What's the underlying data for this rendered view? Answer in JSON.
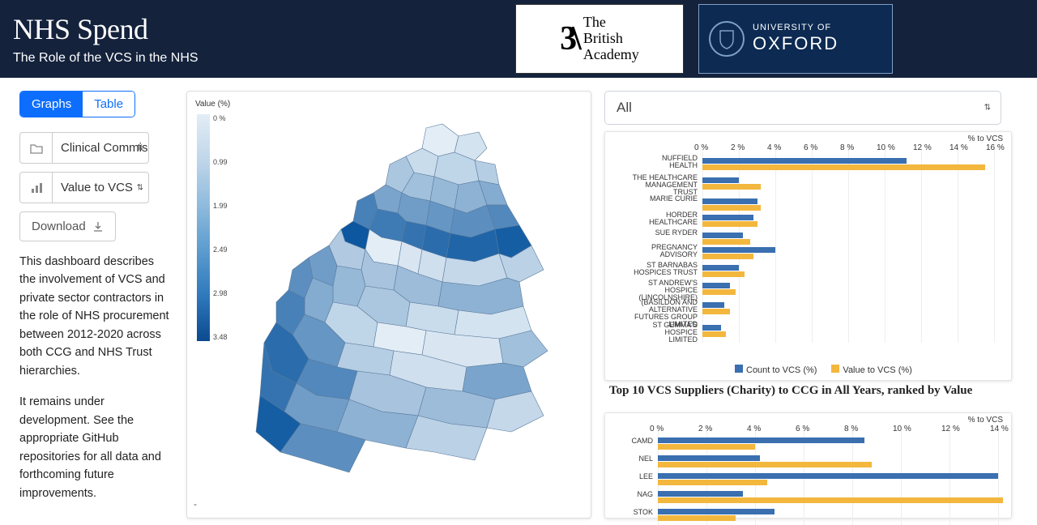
{
  "header": {
    "title": "NHS Spend",
    "subtitle": "The Role of the VCS in the NHS",
    "ba_mark": "3\\",
    "ba_line1": "The",
    "ba_line2": "British",
    "ba_line3": "Academy",
    "ox_line1": "UNIVERSITY OF",
    "ox_line2": "OXFORD"
  },
  "sidebar": {
    "tabs": {
      "graphs": "Graphs",
      "table": "Table"
    },
    "select1": "Clinical Commissioning Group",
    "select2": "Value to VCS",
    "download": "Download",
    "desc1": "This dashboard describes the involvement of VCS and private sector contractors in the role of NHS procurement between 2012-2020 across both CCG and NHS Trust hierarchies.",
    "desc2": "It remains under development. See the appropriate GitHub repositories for all data and forthcoming future improvements."
  },
  "map": {
    "legend_title": "Value (%)",
    "ticks": [
      "0 %",
      "0.99",
      "1.99",
      "2.49",
      "2.98",
      "3.48"
    ],
    "dash": "-",
    "region_fills": [
      "#e3edf6",
      "#d4e3f0",
      "#c9dcec",
      "#bfd5e8",
      "#b5cee4",
      "#abc7e0",
      "#a1c0dc",
      "#97b9d8",
      "#8eb2d4",
      "#84abd0",
      "#7aa4cc",
      "#709dc8",
      "#6696c4",
      "#5c8fc0",
      "#5288bc",
      "#4881b8",
      "#3e7ab4",
      "#3473b0",
      "#2a6cac",
      "#2065a8",
      "#165ea4",
      "#0c57a0",
      "#e3edf6",
      "#d9e6f2",
      "#cfdfee",
      "#c5d8ea",
      "#bbd1e6",
      "#b1cae2",
      "#a7c3de",
      "#9dbcda"
    ],
    "region_paths": [
      "M210 25 L230 20 L250 35 L245 55 L225 60 L205 50 Z",
      "M250 35 L275 30 L285 50 L270 65 L245 55 Z",
      "M205 50 L225 60 L220 85 L195 80 L185 60 Z",
      "M245 55 L270 65 L275 90 L250 95 L220 85 L225 60 Z",
      "M270 65 L295 70 L300 95 L275 90 Z",
      "M185 60 L195 80 L180 105 L160 95 L165 70 Z",
      "M195 80 L220 85 L215 115 L190 110 L180 105 Z",
      "M220 85 L250 95 L245 125 L215 115 Z",
      "M250 95 L275 90 L285 120 L260 130 L245 125 Z",
      "M275 90 L300 95 L310 120 L285 120 Z",
      "M160 95 L180 105 L175 130 L150 125 L145 105 Z",
      "M180 105 L190 110 L215 115 L210 145 L185 140 L175 130 Z",
      "M215 115 L245 125 L240 155 L210 145 Z",
      "M245 125 L260 130 L285 120 L295 150 L265 160 L240 155 Z",
      "M285 120 L310 120 L325 145 L295 150 Z",
      "M145 105 L150 125 L140 150 L120 140 L125 115 Z",
      "M150 125 L175 130 L185 140 L180 165 L155 160 L140 150 Z",
      "M185 140 L210 145 L205 175 L180 165 Z",
      "M210 145 L240 155 L235 185 L205 175 Z",
      "M240 155 L265 160 L295 150 L300 180 L270 190 L235 185 Z",
      "M295 150 L325 145 L340 170 L315 185 L300 180 Z",
      "M120 140 L140 150 L135 175 L110 165 L105 150 Z",
      "M140 150 L155 160 L180 165 L175 195 L145 190 L135 175 Z",
      "M180 165 L205 175 L200 205 L175 195 Z",
      "M205 175 L235 185 L230 215 L200 205 Z",
      "M235 185 L270 190 L300 180 L310 210 L275 220 L230 215 Z",
      "M300 180 L315 185 L340 170 L355 200 L325 215 L310 210 Z",
      "M105 150 L110 165 L135 175 L130 200 L100 195 L90 170 Z",
      "M135 175 L145 190 L175 195 L170 225 L135 220 L130 200 Z",
      "M175 195 L200 205 L230 215 L225 245 L190 240 L170 225 Z"
    ],
    "region_paths2": [
      "M230 215 L275 220 L310 210 L325 215 L330 245 L290 255 L250 250 L225 245 Z",
      "M90 170 L100 195 L95 220 L70 210 L65 185 Z",
      "M100 195 L130 200 L135 220 L125 245 L95 240 L95 220 Z",
      "M135 220 L170 225 L190 240 L185 270 L150 265 L125 245 Z",
      "M190 240 L225 245 L250 250 L245 280 L210 275 L185 270 Z",
      "M250 250 L290 255 L330 245 L340 275 L300 285 L245 280 Z",
      "M65 185 L70 210 L60 235 L40 225 L45 200 Z",
      "M70 210 L95 220 L95 240 L85 265 L60 255 L60 235 Z",
      "M95 240 L125 245 L150 265 L145 295 L110 290 L85 265 Z",
      "M150 265 L185 270 L210 275 L205 305 L170 300 L145 295 Z",
      "M210 275 L245 280 L300 285 L305 315 L260 320 L205 305 Z",
      "M300 285 L340 275 L360 300 L330 320 L305 315 Z",
      "M40 225 L60 235 L60 255 L45 280 L25 265 L25 240 Z",
      "M60 255 L85 265 L110 290 L100 320 L65 310 L45 280 Z",
      "M110 290 L145 295 L170 300 L165 330 L125 325 L100 320 Z",
      "M170 300 L205 305 L260 320 L255 350 L210 345 L165 330 Z",
      "M260 320 L305 315 L330 320 L340 350 L295 360 L255 350 Z",
      "M25 265 L45 280 L65 310 L50 340 L20 325 L10 290 Z",
      "M65 310 L100 320 L125 325 L115 360 L75 355 L50 340 Z",
      "M125 325 L165 330 L210 345 L200 380 L155 375 L115 360 Z",
      "M210 345 L255 350 L295 360 L285 395 L240 390 L200 380 Z",
      "M295 360 L340 350 L355 380 L315 400 L285 395 Z",
      "M10 290 L20 325 L50 340 L35 375 L5 355 Z",
      "M50 340 L75 355 L115 360 L100 400 L55 390 L35 375 Z",
      "M115 360 L155 375 L200 380 L185 420 L135 410 L100 400 Z",
      "M200 380 L240 390 L285 395 L270 435 L220 425 L185 420 Z",
      "M5 355 L35 375 L55 390 L30 425 L0 400 Z",
      "M55 390 L100 400 L135 410 L115 450 L65 435 L30 425 Z"
    ],
    "region_fills2": [
      "#8eb2d4",
      "#709dc8",
      "#97b9d8",
      "#abc7e0",
      "#c9dcec",
      "#d4e3f0",
      "#5c8fc0",
      "#84abd0",
      "#bfd5e8",
      "#e3edf6",
      "#d9e6f2",
      "#a1c0dc",
      "#4881b8",
      "#6696c4",
      "#b5cee4",
      "#cfdfee",
      "#7aa4cc",
      "#2a6cac",
      "#5288bc",
      "#a7c3de",
      "#9dbcda",
      "#c5d8ea",
      "#3473b0",
      "#709dc8",
      "#8eb2d4",
      "#bbd1e6",
      "#165ea4",
      "#5c8fc0"
    ]
  },
  "right": {
    "year_select": "All",
    "chart1": {
      "top_label": "% to VCS",
      "axis_ticks": [
        "0 %",
        "2 %",
        "4 %",
        "6 %",
        "8 %",
        "10 %",
        "12 %",
        "14 %",
        "16 %"
      ],
      "axis_x": [
        120,
        165,
        210,
        255,
        300,
        345,
        390,
        435,
        480
      ],
      "categories": [
        "NUFFIELD\nHEALTH",
        "THE HEALTHCARE\nMANAGEMENT\nTRUST",
        "MARIE CURIE",
        "HORDER\nHEALTHCARE",
        "SUE RYDER",
        "PREGNANCY\nADVISORY",
        "ST BARNABAS\nHOSPICES TRUST",
        "ST ANDREW'S\nHOSPICE\n(LINCOLNSHIRE)",
        "(BASILDON AND\nALTERNATIVE\nFUTURES GROUP\nLIMITED",
        "ST GEMMA'S\nHOSPICE\nLIMITED"
      ],
      "cat_y": [
        32,
        56,
        82,
        102,
        124,
        142,
        164,
        186,
        210,
        238
      ],
      "blue": [
        11.2,
        2.0,
        3.0,
        2.8,
        2.2,
        4.0,
        2.0,
        1.5,
        1.2,
        1.0
      ],
      "yellow": [
        15.5,
        3.2,
        3.2,
        3.0,
        2.6,
        2.8,
        2.3,
        1.8,
        1.5,
        1.3
      ],
      "legend": {
        "count": "Count to VCS (%)",
        "value": "Value to VCS (%)"
      },
      "caption": "Top 10 VCS Suppliers (Charity) to CCG in All Years, ranked by Value",
      "colors": {
        "blue": "#3a6fb0",
        "yellow": "#f3b73e"
      }
    },
    "chart2": {
      "top_label": "% to VCS",
      "axis_ticks": [
        "0 %",
        "2 %",
        "4 %",
        "6 %",
        "8 %",
        "10 %",
        "12 %",
        "14 %"
      ],
      "axis_x": [
        65,
        125,
        185,
        245,
        305,
        365,
        425,
        485
      ],
      "categories": [
        "CAMD",
        "NEL",
        "LEE",
        "NAG",
        "STOK"
      ],
      "cat_y": [
        30,
        52,
        74,
        96,
        118
      ],
      "blue": [
        8.5,
        4.2,
        14.0,
        3.5,
        4.8
      ],
      "yellow": [
        4.0,
        8.8,
        4.5,
        14.2,
        3.2
      ]
    }
  }
}
